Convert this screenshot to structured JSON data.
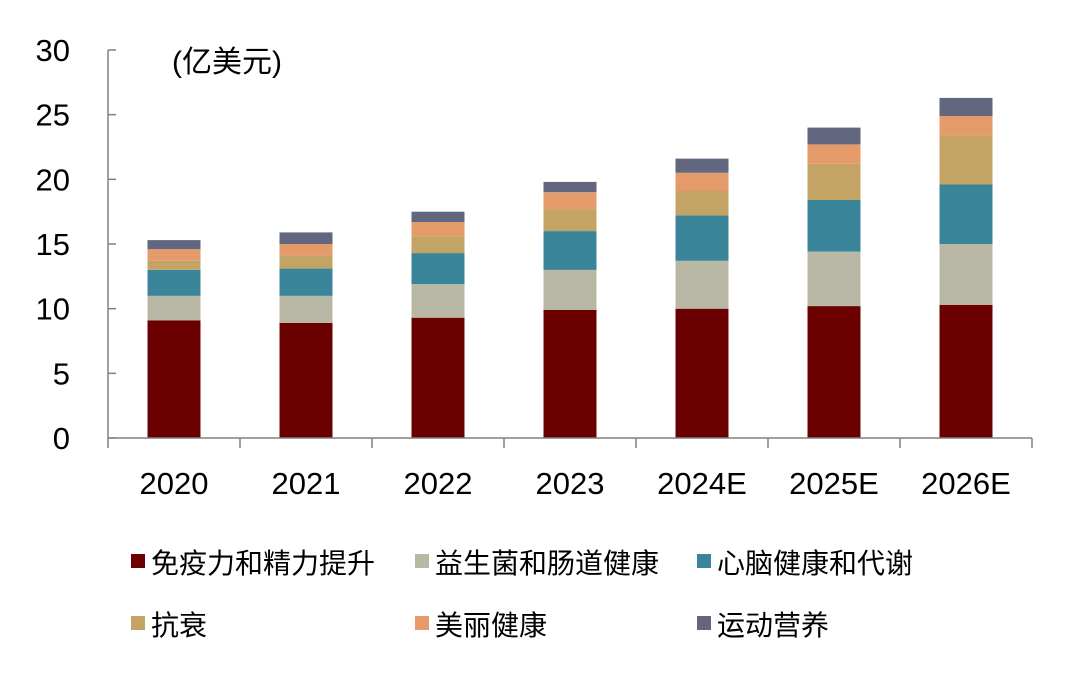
{
  "chart_data": {
    "type": "bar",
    "stacked": true,
    "title": "",
    "unit_label": "(亿美元)",
    "xlabel": "",
    "ylabel": "",
    "ylim": [
      0,
      30
    ],
    "yticks": [
      0,
      5,
      10,
      15,
      20,
      25,
      30
    ],
    "grid": false,
    "legend_position": "bottom",
    "categories": [
      "2020",
      "2021",
      "2022",
      "2023",
      "2024E",
      "2025E",
      "2026E"
    ],
    "series": [
      {
        "name": "免疫力和精力提升",
        "color": "#6b0000",
        "values": [
          9.1,
          8.9,
          9.3,
          9.9,
          10.0,
          10.2,
          10.3
        ]
      },
      {
        "name": "益生菌和肠道健康",
        "color": "#b8b8a4",
        "values": [
          1.9,
          2.1,
          2.6,
          3.1,
          3.7,
          4.2,
          4.7
        ]
      },
      {
        "name": "心脑健康和代谢",
        "color": "#3a8599",
        "values": [
          2.0,
          2.1,
          2.4,
          3.0,
          3.5,
          4.0,
          4.6
        ]
      },
      {
        "name": "抗衰",
        "color": "#c4a464",
        "values": [
          0.7,
          1.0,
          1.3,
          1.7,
          1.9,
          2.8,
          3.8
        ]
      },
      {
        "name": "美丽健康",
        "color": "#e59a6a",
        "values": [
          0.9,
          0.9,
          1.1,
          1.3,
          1.4,
          1.5,
          1.5
        ]
      },
      {
        "name": "运动营养",
        "color": "#63667f",
        "values": [
          0.7,
          0.9,
          0.8,
          0.8,
          1.1,
          1.3,
          1.4
        ]
      }
    ]
  }
}
